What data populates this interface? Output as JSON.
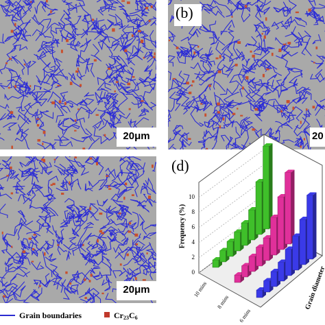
{
  "panels": [
    {
      "scale_bar": "20μm"
    },
    {
      "label": "(b)",
      "scale_bar": "20"
    },
    {
      "scale_bar": "20μm"
    }
  ],
  "legend": {
    "boundaries": "Grain boundaries",
    "carbide": {
      "base1": "Cr",
      "sub1": "23",
      "base2": "C",
      "sub2": "6"
    }
  },
  "chart_data": {
    "type": "bar3d",
    "label": "(d)",
    "ylabel": "Frequency (%)",
    "xlabel": "Grain diameter",
    "categories": [
      null,
      null,
      null,
      null,
      null,
      null,
      null,
      null
    ],
    "ylim": [
      0,
      12
    ],
    "yticks": [
      0,
      2,
      4,
      6,
      8,
      10
    ],
    "series": [
      {
        "name": "10 mins",
        "color": "#3fbf2a",
        "values": [
          1,
          1.5,
          2,
          2.5,
          3,
          4,
          7,
          11
        ]
      },
      {
        "name": "8 mins",
        "color": "#e0309a",
        "values": [
          1,
          1.5,
          2,
          2.5,
          3,
          5,
          7,
          9.5
        ]
      },
      {
        "name": "6 mins",
        "color": "#3a3ae8",
        "values": [
          1,
          1.5,
          2,
          2.5,
          3.5,
          4.5,
          6,
          8.5
        ]
      }
    ]
  }
}
